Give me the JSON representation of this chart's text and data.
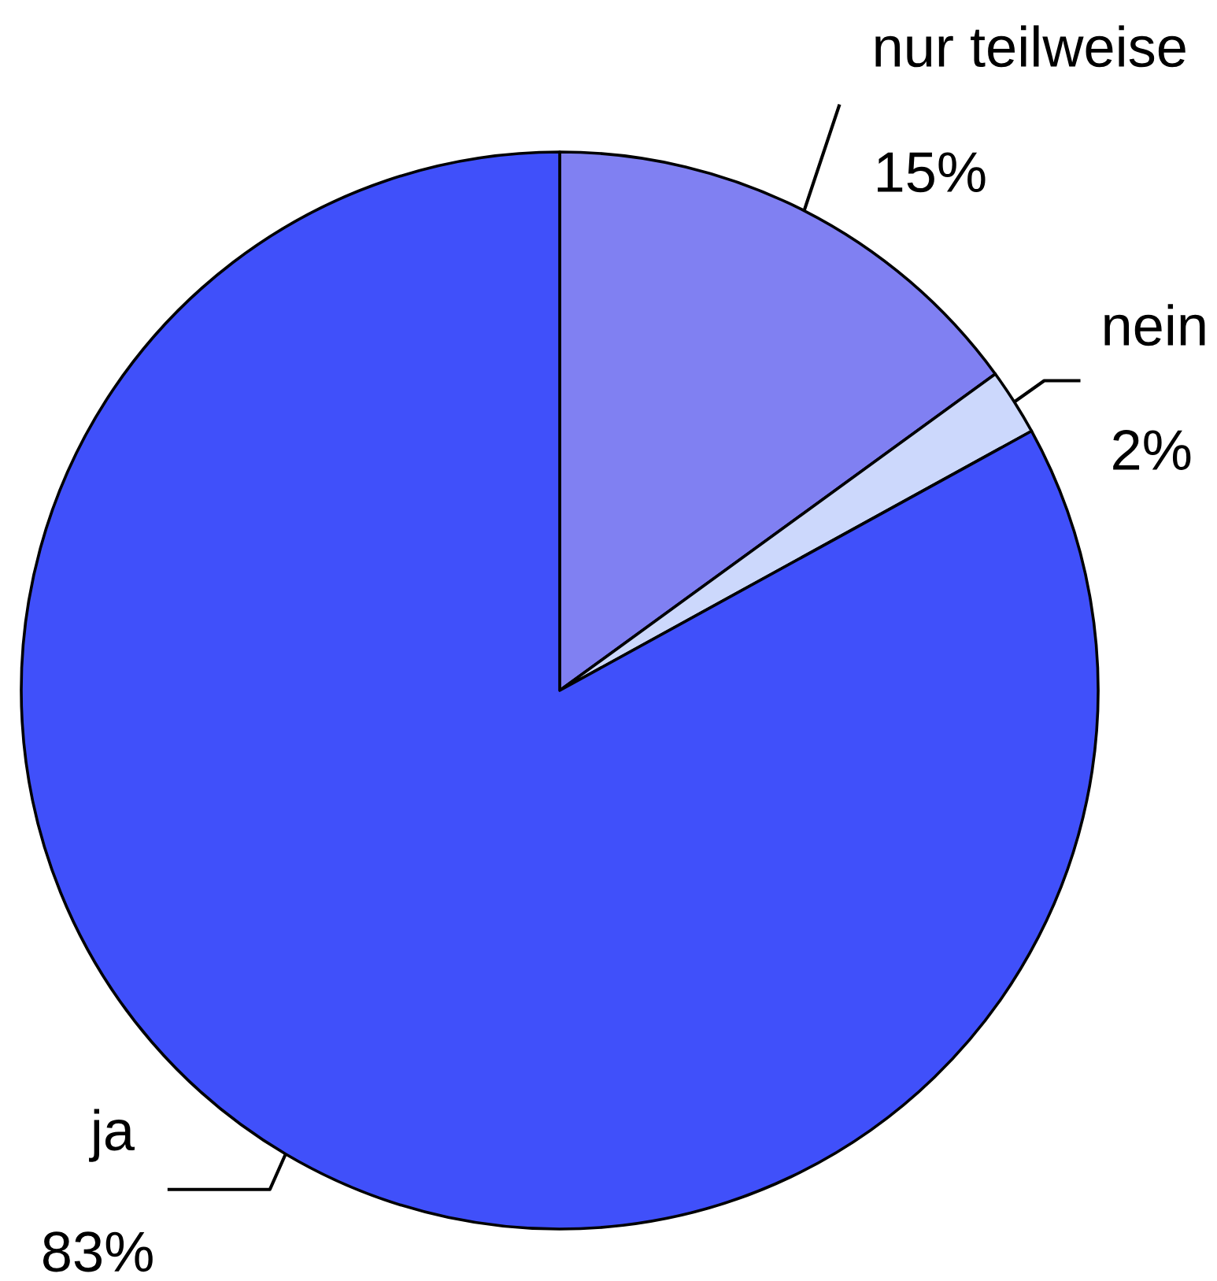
{
  "chart_data": {
    "type": "pie",
    "categories": [
      "nur teilweise",
      "nein",
      "ja"
    ],
    "values": [
      15,
      2,
      83
    ],
    "colors": [
      "#8080f2",
      "#ccd8fc",
      "#4050fa"
    ],
    "value_labels": [
      "15%",
      "2%",
      "83%"
    ]
  }
}
